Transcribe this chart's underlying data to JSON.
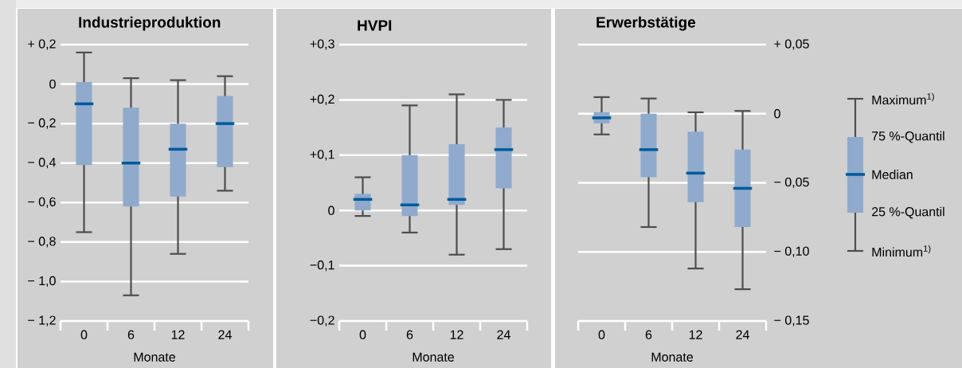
{
  "chart_data": [
    {
      "type": "box",
      "title": "Industrieproduktion",
      "xlabel": "Monate",
      "categories": [
        "0",
        "6",
        "12",
        "24"
      ],
      "color": "#8faacc",
      "grid": "y",
      "boxes": [
        {
          "low": -0.75,
          "q1": -0.41,
          "median": -0.1,
          "q3": 0.01,
          "high": 0.16
        },
        {
          "low": -1.07,
          "q1": -0.62,
          "median": -0.4,
          "q3": -0.12,
          "high": 0.03
        },
        {
          "low": -0.86,
          "q1": -0.57,
          "median": -0.33,
          "q3": -0.2,
          "high": 0.02
        },
        {
          "low": -0.54,
          "q1": -0.42,
          "median": -0.2,
          "q3": -0.06,
          "high": 0.04
        }
      ],
      "ylim": [
        -1.2,
        0.2
      ],
      "yticks": [
        {
          "value": -1.2,
          "label": "− 1,2"
        },
        {
          "value": -1.0,
          "label": "− 1,0"
        },
        {
          "value": -0.8,
          "label": "− 0,8"
        },
        {
          "value": -0.6,
          "label": "− 0,6"
        },
        {
          "value": -0.4,
          "label": "− 0,4"
        },
        {
          "value": -0.2,
          "label": "− 0,2"
        },
        {
          "value": 0,
          "label": "0"
        },
        {
          "value": 0.2,
          "label": "+ 0,2"
        }
      ]
    },
    {
      "type": "box",
      "title": "HVPI",
      "xlabel": "Monate",
      "categories": [
        "0",
        "6",
        "12",
        "24"
      ],
      "color": "#8faacc",
      "grid": "y",
      "boxes": [
        {
          "low": -0.01,
          "q1": 0.0,
          "median": 0.02,
          "q3": 0.03,
          "high": 0.06
        },
        {
          "low": -0.04,
          "q1": -0.01,
          "median": 0.01,
          "q3": 0.1,
          "high": 0.19
        },
        {
          "low": -0.08,
          "q1": 0.01,
          "median": 0.02,
          "q3": 0.12,
          "high": 0.21
        },
        {
          "low": -0.07,
          "q1": 0.04,
          "median": 0.11,
          "q3": 0.15,
          "high": 0.2
        }
      ],
      "ylim": [
        -0.2,
        0.3
      ],
      "yticks": [
        {
          "value": -0.2,
          "label": "−0,2"
        },
        {
          "value": -0.1,
          "label": "−0,1"
        },
        {
          "value": 0,
          "label": "0"
        },
        {
          "value": 0.1,
          "label": "+0,1"
        },
        {
          "value": 0.2,
          "label": "+0,2"
        },
        {
          "value": 0.3,
          "label": "+0,3"
        }
      ]
    },
    {
      "type": "box",
      "title": "Erwerbstätige",
      "xlabel": "Monate",
      "categories": [
        "0",
        "6",
        "12",
        "24"
      ],
      "color": "#8faacc",
      "grid": "y",
      "boxes": [
        {
          "low": -0.015,
          "q1": -0.007,
          "median": -0.003,
          "q3": 0.001,
          "high": 0.012
        },
        {
          "low": -0.082,
          "q1": -0.046,
          "median": -0.026,
          "q3": 0.0,
          "high": 0.011
        },
        {
          "low": -0.112,
          "q1": -0.064,
          "median": -0.043,
          "q3": -0.013,
          "high": 0.001
        },
        {
          "low": -0.127,
          "q1": -0.082,
          "median": -0.054,
          "q3": -0.026,
          "high": 0.002
        }
      ],
      "ylim": [
        -0.15,
        0.05
      ],
      "yticks": [
        {
          "value": -0.15,
          "label": "− 0,15"
        },
        {
          "value": -0.1,
          "label": "− 0,10"
        },
        {
          "value": -0.05,
          "label": "− 0,05"
        },
        {
          "value": 0,
          "label": "0"
        },
        {
          "value": 0.05,
          "label": "+ 0,05"
        }
      ],
      "annotations": [
        "Maximum$^{1)}$",
        "75 %-Quantil",
        "Median",
        "25 %-Quantil",
        "Minimum$^{1)}$"
      ]
    }
  ]
}
